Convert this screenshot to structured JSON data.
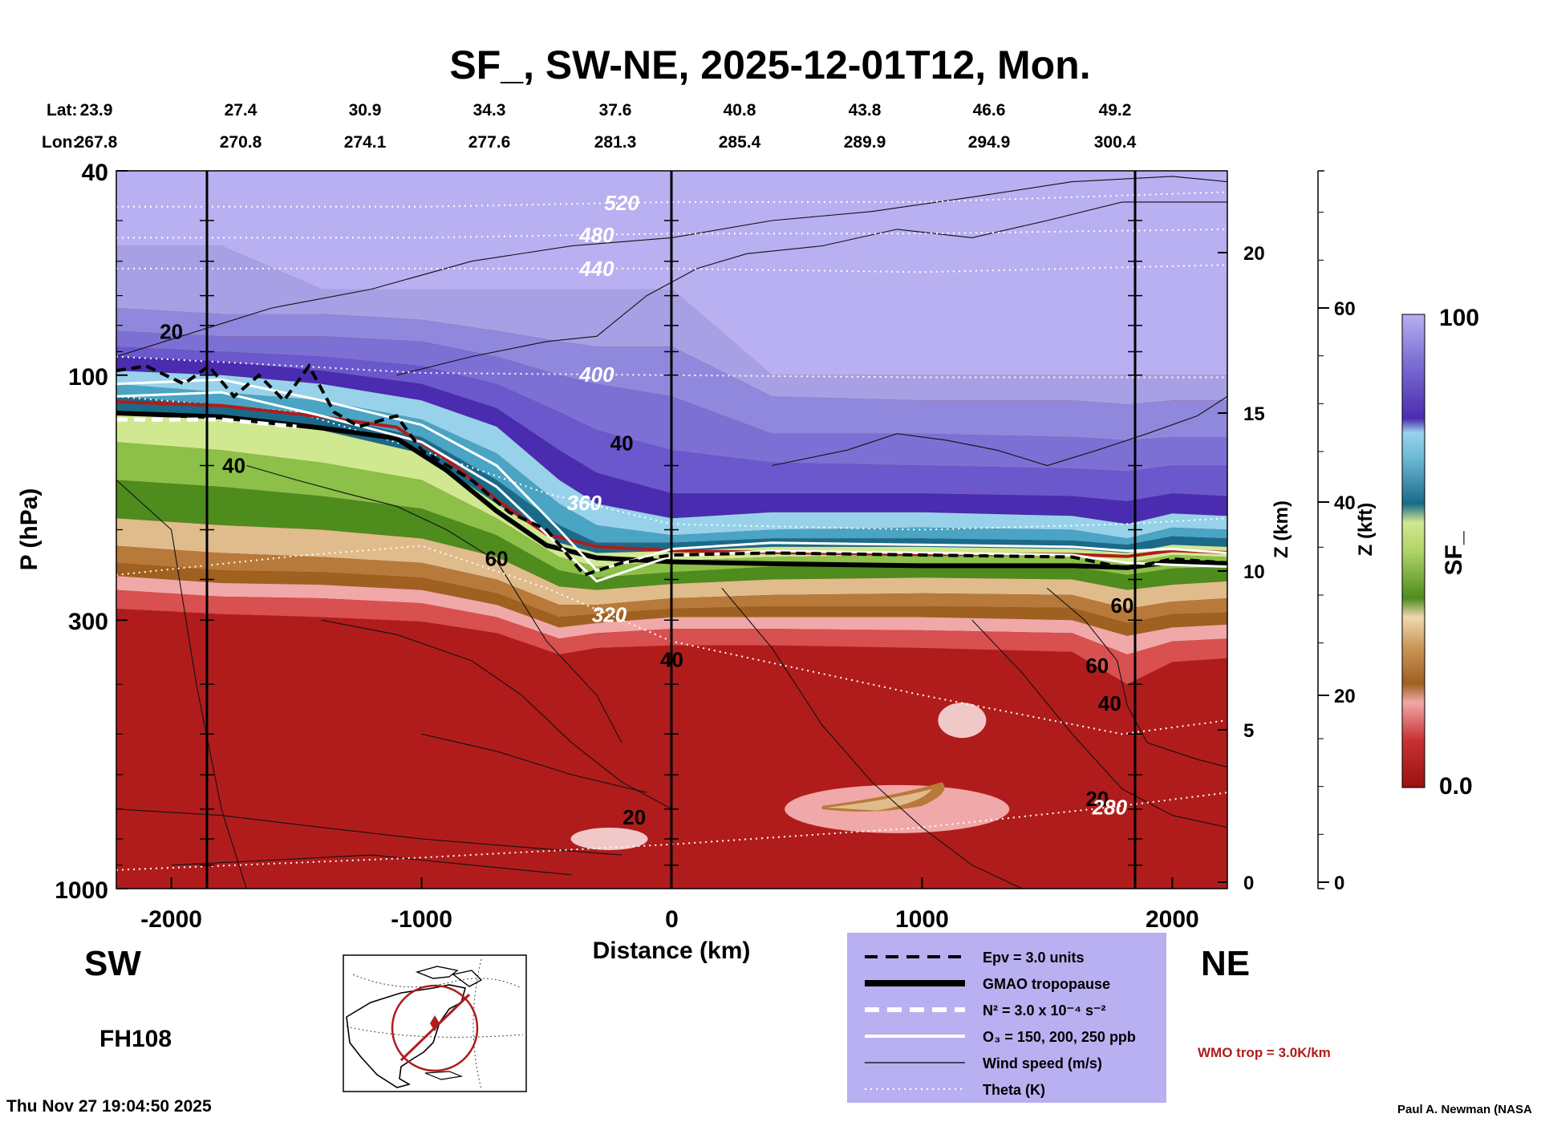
{
  "chart_data": {
    "type": "heatmap",
    "title": "SF_, SW-NE, 2025-12-01T12, Mon.",
    "xlabel": "Distance (km)",
    "ylabel": "P (hPa)",
    "y2label": "Z (km)",
    "y3label": "Z (kft)",
    "colorbar_label": "SF_",
    "xlim": [
      -2220,
      2220
    ],
    "x_ticks": [
      -2000,
      -1000,
      0,
      1000,
      2000
    ],
    "x_tick_labels": [
      "-2000",
      "-1000",
      "0",
      "1000",
      "2000"
    ],
    "y_log_scale": true,
    "ylim_hpa": [
      1000,
      40
    ],
    "y_ticks": [
      40,
      100,
      300,
      1000
    ],
    "y_tick_labels": [
      "40",
      "100",
      "300",
      "1000"
    ],
    "z_km_ticks": [
      0,
      5,
      10,
      15,
      20
    ],
    "z_km_tick_labels": [
      "0",
      "5",
      "10",
      "15",
      "20"
    ],
    "z_kft_ticks": [
      0,
      20,
      40,
      60
    ],
    "z_kft_tick_labels": [
      "0",
      "20",
      "40",
      "60"
    ],
    "colorbar_range": [
      0.0,
      100
    ],
    "colorbar_tick_labels": [
      "100",
      "0.0"
    ],
    "colorbar_colors": [
      "#9a1010",
      "#b01c1c",
      "#c83232",
      "#d85050",
      "#e87c7c",
      "#f0a8a8",
      "#a06020",
      "#b87a3a",
      "#cc9a5c",
      "#e0bc8c",
      "#f0d8b0",
      "#4e8c1e",
      "#6aa82e",
      "#8cc048",
      "#b0d468",
      "#d0e890",
      "#1a6a8a",
      "#2c88aa",
      "#4aa4c4",
      "#70bcd8",
      "#98d2ea",
      "#4a2cb0",
      "#5a40c0",
      "#6a58cc",
      "#7c70d4",
      "#9088dc",
      "#a8a0e4",
      "#b8b0f0"
    ],
    "lat_label": "Lat:",
    "lon_label": "Lon:",
    "lat": [
      "23.9",
      "27.4",
      "30.9",
      "34.3",
      "37.6",
      "40.8",
      "43.8",
      "46.6",
      "49.2"
    ],
    "lon": [
      "267.8",
      "270.8",
      "274.1",
      "277.6",
      "281.3",
      "285.4",
      "289.9",
      "294.9",
      "300.4"
    ],
    "theta_contours": [
      {
        "label": "520",
        "points": [
          [
            -2220,
            47
          ],
          [
            -1000,
            47
          ],
          [
            0,
            46
          ],
          [
            1000,
            46
          ],
          [
            2220,
            44
          ]
        ]
      },
      {
        "label": "480",
        "points": [
          [
            -2220,
            54
          ],
          [
            -1000,
            54
          ],
          [
            0,
            53
          ],
          [
            1000,
            53
          ],
          [
            2220,
            52
          ]
        ]
      },
      {
        "label": "440",
        "points": [
          [
            -2220,
            62
          ],
          [
            -1000,
            62
          ],
          [
            0,
            62
          ],
          [
            1000,
            63
          ],
          [
            2220,
            61
          ]
        ]
      },
      {
        "label": "400",
        "points": [
          [
            -2220,
            92
          ],
          [
            -1500,
            96
          ],
          [
            -1000,
            99
          ],
          [
            0,
            100
          ],
          [
            1000,
            101
          ],
          [
            2220,
            101
          ]
        ]
      },
      {
        "label": "360",
        "points": [
          [
            -2220,
            110
          ],
          [
            -1500,
            118
          ],
          [
            -1000,
            140
          ],
          [
            -500,
            170
          ],
          [
            0,
            195
          ],
          [
            1000,
            200
          ],
          [
            1800,
            195
          ],
          [
            2220,
            190
          ]
        ]
      },
      {
        "label": "320",
        "points": [
          [
            -2220,
            245
          ],
          [
            -1500,
            225
          ],
          [
            -1000,
            215
          ],
          [
            -500,
            260
          ],
          [
            0,
            330
          ],
          [
            1000,
            420
          ],
          [
            1800,
            500
          ],
          [
            2220,
            470
          ]
        ]
      },
      {
        "label": "280",
        "points": [
          [
            -2220,
            920
          ],
          [
            -1000,
            870
          ],
          [
            0,
            820
          ],
          [
            1000,
            760
          ],
          [
            1800,
            690
          ],
          [
            2220,
            650
          ]
        ]
      }
    ],
    "wind_speed_labels": [
      "20",
      "40",
      "60",
      "40",
      "20",
      "40",
      "60",
      "60",
      "40",
      "20"
    ],
    "legend": [
      {
        "label": "Epv = 3.0 units",
        "style": "black-dashed-thick"
      },
      {
        "label": "GMAO tropopause",
        "style": "black-solid-thick"
      },
      {
        "label": "N² = 3.0 x 10⁻⁴ s⁻²",
        "style": "white-dashed-thick"
      },
      {
        "label": "O₃ = 150, 200, 250 ppb",
        "style": "white-solid"
      },
      {
        "label": "Wind speed (m/s)",
        "style": "black-thin"
      },
      {
        "label": "Theta (K)",
        "style": "white-dotted"
      }
    ],
    "wmo_label": "WMO trop = 3.0K/km",
    "colors": {
      "wmo_trop": "#b01c1c",
      "legend_bg": "#b8b0f0",
      "stratosphere": "#a8a0e4",
      "troposphere": "#9a1010"
    }
  },
  "left_label": "SW",
  "right_label": "NE",
  "forecast_hour": "FH108",
  "timestamp": "Thu Nov 27 19:04:50 2025",
  "credit": "Paul A. Newman (NASA"
}
